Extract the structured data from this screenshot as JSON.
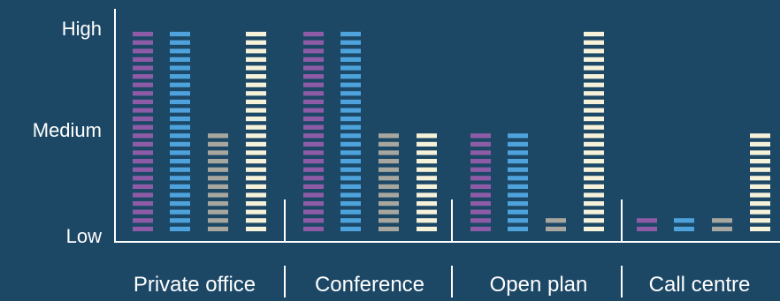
{
  "chart_data": {
    "type": "bar",
    "categories": [
      "Private office",
      "Conference",
      "Open plan",
      "Call centre"
    ],
    "series": [
      {
        "color": "#8e5ca6",
        "values": [
          24,
          24,
          12,
          2
        ]
      },
      {
        "color": "#4ea3dd",
        "values": [
          24,
          24,
          12,
          2
        ]
      },
      {
        "color": "#a8a79f",
        "values": [
          12,
          12,
          2,
          2
        ]
      },
      {
        "color": "#f6f1d9",
        "values": [
          24,
          12,
          24,
          12
        ]
      }
    ],
    "y_ticks": [
      "High",
      "Medium",
      "Low"
    ],
    "ylim": [
      0,
      24
    ],
    "grid": false,
    "legend": "none"
  }
}
